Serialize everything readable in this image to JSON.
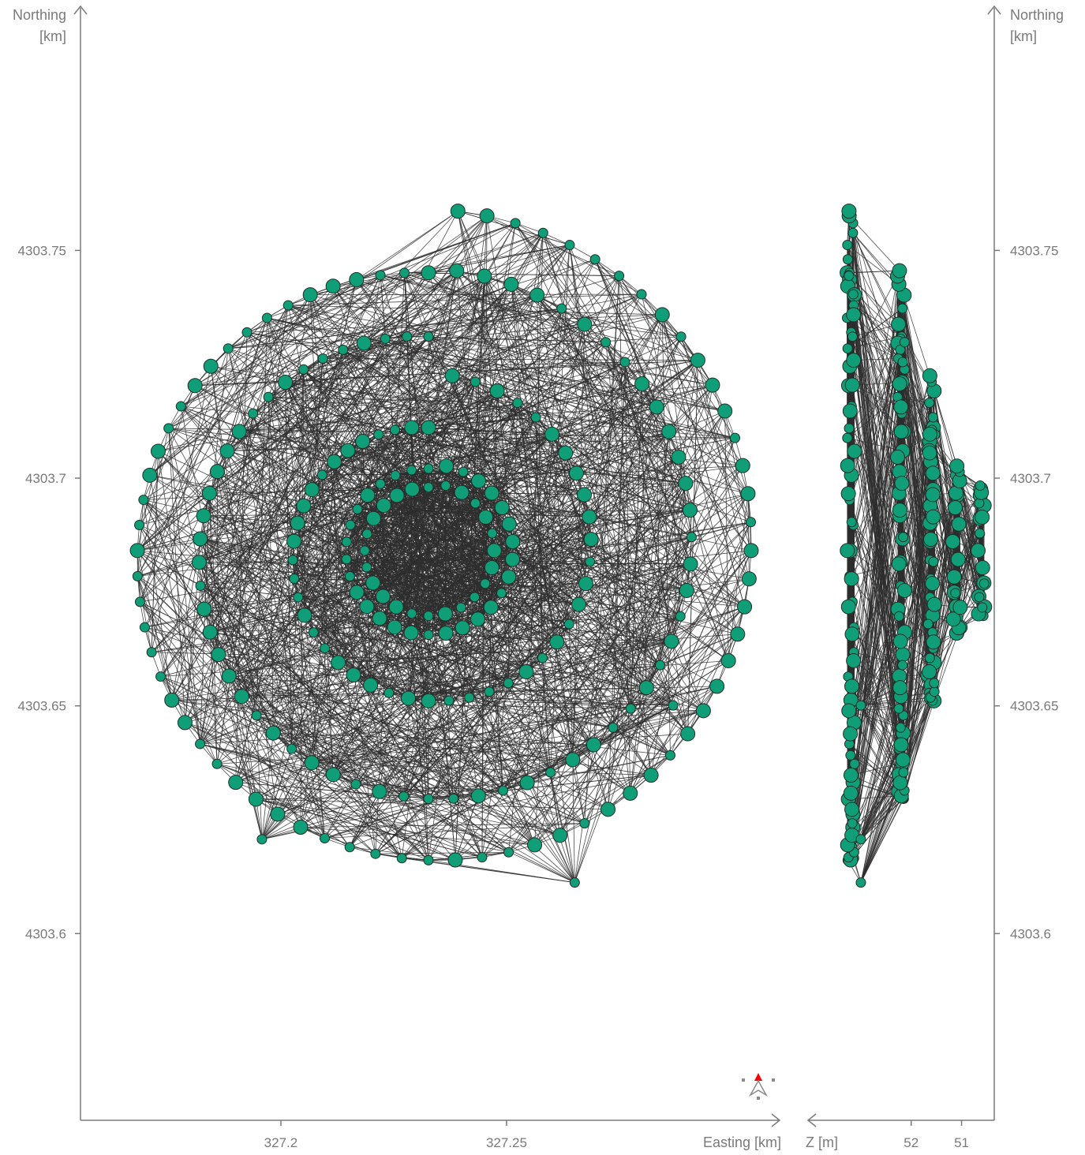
{
  "chart_data": {
    "type": "scatter",
    "colors": {
      "node": "#0f9e78",
      "edge": "#2e2e2e",
      "axis": "#7a7a7a",
      "north": "#ff0000"
    },
    "plan_view": {
      "xlabel": "Easting [km]",
      "ylabel_line1": "Northing",
      "ylabel_line2": "[km]",
      "xlim": [
        327.1556,
        327.3105
      ],
      "ylim": [
        4303.559,
        4303.8036
      ],
      "xticks": [
        {
          "value": 327.2,
          "label": "327.2"
        },
        {
          "value": 327.25,
          "label": "327.25"
        }
      ],
      "yticks": [
        {
          "value": 4303.6,
          "label": "4303.6"
        },
        {
          "value": 4303.65,
          "label": "4303.65"
        },
        {
          "value": 4303.7,
          "label": "4303.7"
        },
        {
          "value": 4303.75,
          "label": "4303.75"
        }
      ],
      "spirals": [
        {
          "cx": 327.2327,
          "cy": 4303.6841,
          "r_start": 0.0139,
          "r_end": 0.0148,
          "n": 24
        },
        {
          "cx": 327.2327,
          "cy": 4303.6841,
          "r_start": 0.018,
          "r_end": 0.019,
          "n": 30
        },
        {
          "cx": 327.2327,
          "cy": 4303.6841,
          "r_start": 0.027,
          "r_end": 0.039,
          "n": 46
        },
        {
          "cx": 327.2327,
          "cy": 4303.6841,
          "r_start": 0.047,
          "r_end": 0.062,
          "n": 62
        },
        {
          "cx": 327.2327,
          "cy": 4303.6841,
          "r_start": 0.061,
          "r_end": 0.075,
          "n": 72
        }
      ],
      "outliers": [
        {
          "x": 327.2651,
          "y": 4303.6112
        },
        {
          "x": 327.2869,
          "y": 4303.6501
        },
        {
          "x": 327.1958,
          "y": 4303.6207
        }
      ]
    },
    "side_view": {
      "xlabel": "Z [m]",
      "ylabel_line1": "Northing",
      "ylabel_line2": "[km]",
      "zlim": [
        54.05,
        50.35
      ],
      "xticks": [
        {
          "value": 52,
          "label": "52"
        },
        {
          "value": 51,
          "label": "51"
        }
      ],
      "yticks": [
        {
          "value": 4303.6,
          "label": "4303.6"
        },
        {
          "value": 4303.65,
          "label": "4303.65"
        },
        {
          "value": 4303.7,
          "label": "4303.7"
        },
        {
          "value": 4303.75,
          "label": "4303.75"
        }
      ],
      "z_layers": [
        {
          "z": 50.6,
          "ymin": 4303.676,
          "ymax": 4303.694
        },
        {
          "z": 51.1,
          "ymin": 4303.662,
          "ymax": 4303.706
        },
        {
          "z": 51.6,
          "ymin": 4303.649,
          "ymax": 4303.719
        },
        {
          "z": 52.2,
          "ymin": 4303.631,
          "ymax": 4303.737
        },
        {
          "z": 53.2,
          "ymin": 4303.617,
          "ymax": 4303.757
        }
      ]
    }
  }
}
